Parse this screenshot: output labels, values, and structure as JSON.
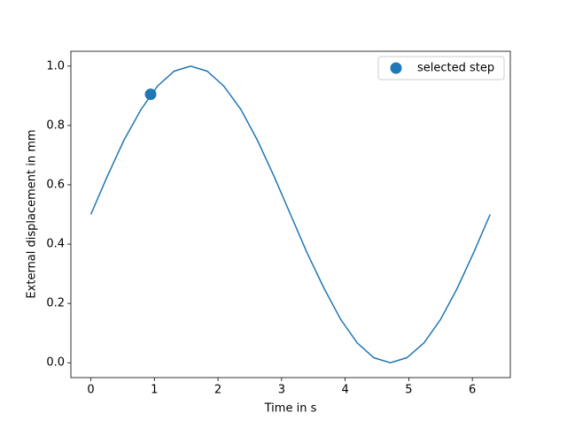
{
  "chart_data": {
    "type": "line",
    "x_label": "Time in s",
    "y_label": "External displacement in mm",
    "xlim": [
      -0.314,
      6.597
    ],
    "ylim": [
      -0.05,
      1.05
    ],
    "xticks": [
      0,
      1,
      2,
      3,
      4,
      5,
      6
    ],
    "yticks": [
      {
        "value": 0,
        "label": "0.0"
      },
      0.2,
      0.4,
      0.6,
      0.8,
      {
        "value": 1,
        "label": "1.0"
      }
    ],
    "legend": "upper right",
    "series": [
      {
        "color": "#1f77b4",
        "style": "line",
        "x": [
          0,
          0.26,
          0.52,
          0.79,
          1.05,
          1.31,
          1.57,
          1.83,
          2.09,
          2.36,
          2.62,
          2.88,
          3.14,
          3.4,
          3.67,
          3.93,
          4.19,
          4.45,
          4.71,
          4.97,
          5.24,
          5.5,
          5.76,
          6.02,
          6.28
        ],
        "values": [
          0.5,
          0.629,
          0.75,
          0.854,
          0.933,
          0.983,
          1.0,
          0.983,
          0.933,
          0.854,
          0.75,
          0.629,
          0.5,
          0.371,
          0.25,
          0.146,
          0.067,
          0.017,
          0.0,
          0.017,
          0.067,
          0.146,
          0.25,
          0.371,
          0.5
        ]
      },
      {
        "name": "selected step",
        "color": "#1f77b4",
        "style": "marker",
        "x": [
          0.94
        ],
        "values": [
          0.905
        ]
      }
    ]
  }
}
